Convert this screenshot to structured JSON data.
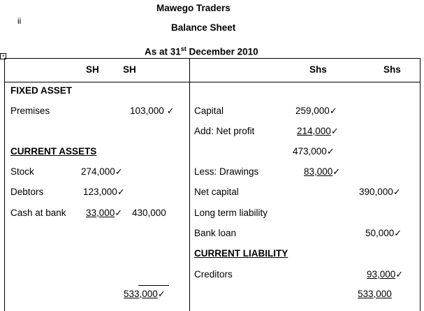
{
  "header": {
    "roman": "ii",
    "company": "Mawego Traders",
    "title": "Balance Sheet",
    "date_prefix": "As at 31",
    "date_sup": "st",
    "date_suffix": " December 2010"
  },
  "table": {
    "left_col_head_1": "SH",
    "left_col_head_2": "SH",
    "right_col_head_1": "Shs",
    "right_col_head_2": "Shs"
  },
  "left": {
    "fixed_asset_heading": "FIXED ASSET",
    "premises_label": "Premises",
    "premises_value": "103,000",
    "current_assets_heading": "CURRENT ASSETS",
    "stock_label": "Stock",
    "stock_value": "274,000",
    "debtors_label": "Debtors",
    "debtors_value": "123,000",
    "cash_label": "Cash at bank",
    "cash_value": "33,000",
    "current_total": "430,000",
    "grand_total": "533,000"
  },
  "right": {
    "capital_label": "Capital",
    "capital_value": "259,000",
    "net_profit_label": "Add: Net profit",
    "net_profit_value": "214,000",
    "subtotal_value": "473,000",
    "drawings_label": "Less: Drawings",
    "drawings_value": "83,000",
    "net_capital_label": "Net capital",
    "net_capital_value": "390,000",
    "long_term_label": "Long term liability",
    "bank_loan_label": "Bank loan",
    "bank_loan_value": "50,000",
    "current_liability_heading": "CURRENT LIABILITY",
    "creditors_label": "Creditors",
    "creditors_value": "93,000",
    "grand_total": "533,000"
  },
  "tick_mark": "✓",
  "anchor_glyph": "+"
}
